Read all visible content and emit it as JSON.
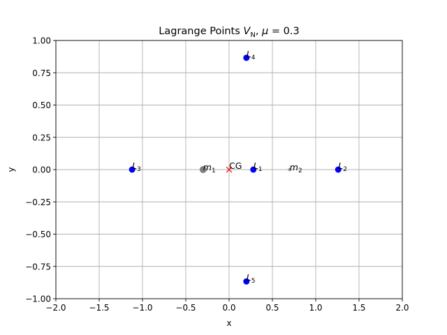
{
  "chart_data": {
    "type": "scatter",
    "title": {
      "base": "Lagrange Points ",
      "var": "V",
      "sub": "N",
      "rest": ", ",
      "mu": "μ",
      "eq": " = 0.3"
    },
    "xlabel": "x",
    "ylabel": "y",
    "xlim": [
      -2.0,
      2.0
    ],
    "ylim": [
      -1.0,
      1.0
    ],
    "grid": true,
    "x_ticks": [
      -2.0,
      -1.5,
      -1.0,
      -0.5,
      0.0,
      0.5,
      1.0,
      1.5,
      2.0
    ],
    "x_tick_labels": [
      "−2.0",
      "−1.5",
      "−1.0",
      "−0.5",
      "0.0",
      "0.5",
      "1.0",
      "1.5",
      "2.0"
    ],
    "y_ticks": [
      1.0,
      0.75,
      0.5,
      0.25,
      0.0,
      -0.25,
      -0.5,
      -0.75,
      -1.0
    ],
    "y_tick_labels": [
      "1.00",
      "0.75",
      "0.50",
      "0.25",
      "0.00",
      "−0.25",
      "−0.50",
      "−0.75",
      "−1.00"
    ],
    "lagrange_points": [
      {
        "letter": "L",
        "sub": "1",
        "x": 0.28,
        "y": 0.0
      },
      {
        "letter": "L",
        "sub": "2",
        "x": 1.26,
        "y": 0.0
      },
      {
        "letter": "L",
        "sub": "3",
        "x": -1.12,
        "y": 0.0
      },
      {
        "letter": "L",
        "sub": "4",
        "x": 0.2,
        "y": 0.866
      },
      {
        "letter": "L",
        "sub": "5",
        "x": 0.2,
        "y": -0.866
      }
    ],
    "masses": [
      {
        "letter": "m",
        "sub": "1",
        "x": -0.3,
        "y": 0.0
      },
      {
        "letter": "m",
        "sub": "2",
        "x": 0.7,
        "y": 0.0
      }
    ],
    "center_of_gravity": {
      "label": "CG",
      "x": 0.0,
      "y": 0.0
    },
    "colors": {
      "lagrange_points": "#0000ff",
      "mass_1": "#808080",
      "mass_2": "#a0a0a0",
      "center_of_gravity": "#ff0000"
    }
  }
}
